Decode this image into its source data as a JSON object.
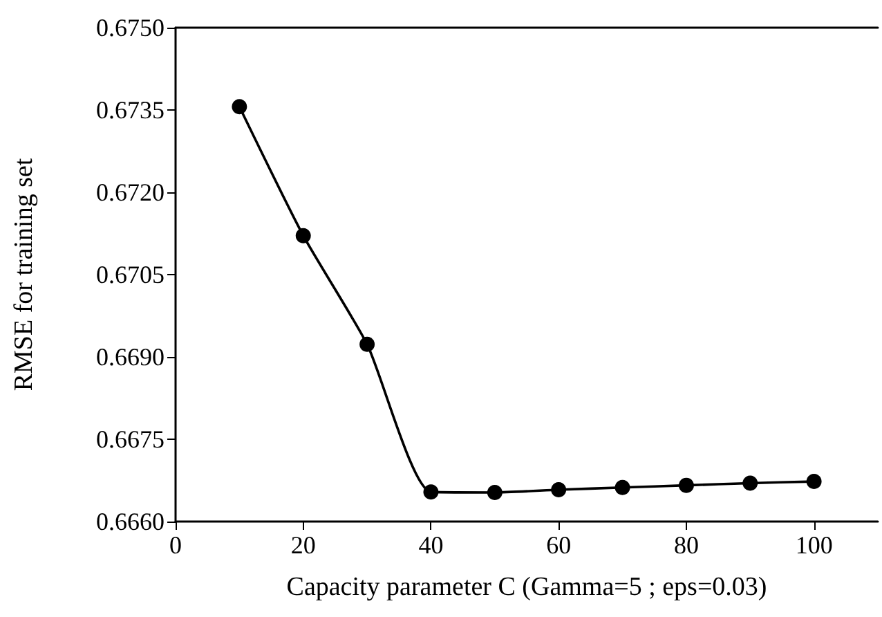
{
  "chart_data": {
    "type": "line",
    "xlabel": "Capacity parameter C (Gamma=5 ; eps=0.03)",
    "ylabel": "RMSE for training set",
    "x": [
      10,
      20,
      30,
      40,
      50,
      60,
      70,
      80,
      90,
      100
    ],
    "series": [
      {
        "color": "#000000",
        "values": [
          0.67356,
          0.67121,
          0.66923,
          0.66654,
          0.66653,
          0.66658,
          0.66662,
          0.66666,
          0.6667,
          0.66673
        ]
      }
    ],
    "xlim": [
      0,
      110
    ],
    "xticks": [
      0,
      20,
      40,
      60,
      80,
      100
    ],
    "ylim": [
      0.666,
      0.675
    ],
    "yticks": [
      {
        "value": 0.666,
        "label": "0.6660"
      },
      0.6675,
      {
        "value": 0.669,
        "label": "0.6690"
      },
      0.6705,
      {
        "value": 0.672,
        "label": "0.6720"
      },
      0.6735,
      {
        "value": 0.675,
        "label": "0.6750"
      }
    ],
    "grid": false,
    "marker": "circle",
    "line_style": "solid"
  }
}
